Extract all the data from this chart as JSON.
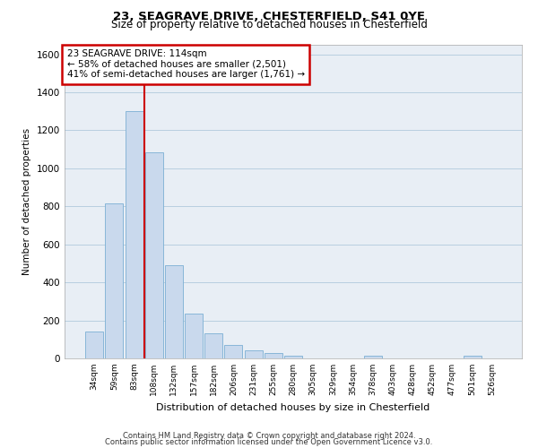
{
  "title_line1": "23, SEAGRAVE DRIVE, CHESTERFIELD, S41 0YE",
  "title_line2": "Size of property relative to detached houses in Chesterfield",
  "xlabel": "Distribution of detached houses by size in Chesterfield",
  "ylabel": "Number of detached properties",
  "categories": [
    "34sqm",
    "59sqm",
    "83sqm",
    "108sqm",
    "132sqm",
    "157sqm",
    "182sqm",
    "206sqm",
    "231sqm",
    "255sqm",
    "280sqm",
    "305sqm",
    "329sqm",
    "354sqm",
    "378sqm",
    "403sqm",
    "428sqm",
    "452sqm",
    "477sqm",
    "501sqm",
    "526sqm"
  ],
  "values": [
    140,
    815,
    1300,
    1085,
    490,
    235,
    130,
    70,
    42,
    27,
    15,
    0,
    0,
    0,
    12,
    0,
    0,
    0,
    0,
    13,
    0
  ],
  "bar_color": "#c9d9ed",
  "bar_edge_color": "#7bafd4",
  "vline_x": 2.5,
  "annotation_line1": "23 SEAGRAVE DRIVE: 114sqm",
  "annotation_line2": "← 58% of detached houses are smaller (2,501)",
  "annotation_line3": "41% of semi-detached houses are larger (1,761) →",
  "annotation_box_color": "#ffffff",
  "annotation_box_edge_color": "#cc0000",
  "vline_color": "#cc0000",
  "ylim": [
    0,
    1650
  ],
  "yticks": [
    0,
    200,
    400,
    600,
    800,
    1000,
    1200,
    1400,
    1600
  ],
  "grid_color": "#b8cfe0",
  "background_color": "#e8eef5",
  "footer_line1": "Contains HM Land Registry data © Crown copyright and database right 2024.",
  "footer_line2": "Contains public sector information licensed under the Open Government Licence v3.0."
}
